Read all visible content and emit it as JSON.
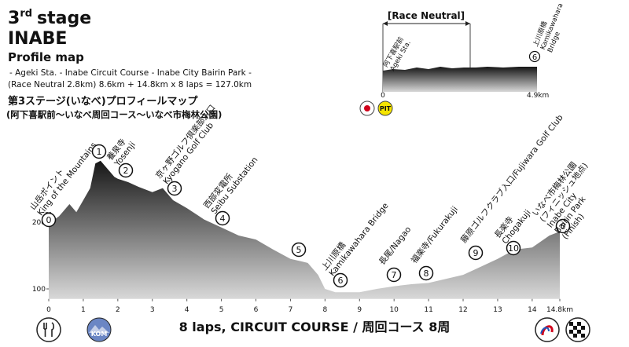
{
  "header": {
    "stage_number": "3",
    "stage_suffix": "rd",
    "stage_word": "stage",
    "name": "INABE",
    "subtitle": "Profile map",
    "route": "- Ageki Sta. - Inabe Circuit Course - Inabe City Bairin Park -",
    "distance": "(Race Neutral 2.8km) 8.6km + 14.8km x 8 laps = 127.0km",
    "title_ja": "第3ステージ(いなべ)プロフィールマップ",
    "route_ja": "(阿下喜駅前〜いなべ周回コース〜いなべ市梅林公園)"
  },
  "neutral": {
    "title": "[Race Neutral]",
    "start_ja": "阿下喜駅前",
    "start_en": "Ageki Sta.",
    "end_number": "6",
    "end_ja": "上川原橋",
    "end_en": [
      "Kamikawahara",
      "Bridge"
    ],
    "start_tick": "0",
    "end_tick": "4.9km",
    "pit": "PIT"
  },
  "landmarks": [
    {
      "number": "0",
      "lines": [
        "山岳ポイント",
        "King of the Mountains"
      ]
    },
    {
      "number": "1",
      "lines": []
    },
    {
      "number": "2",
      "lines": [
        "養泉寺",
        "Yosenji"
      ]
    },
    {
      "number": "3",
      "lines": [
        "京ヶ野ゴルフ倶楽部入口",
        "Kyogano Golf Club"
      ]
    },
    {
      "number": "4",
      "lines": [
        "西部変電所",
        "Seibu Substation"
      ]
    },
    {
      "number": "5",
      "lines": []
    },
    {
      "number": "6",
      "lines": [
        "上川原橋",
        "Kamikawahara Bridge"
      ]
    },
    {
      "number": "7",
      "lines": [
        "長尾/Nagao"
      ]
    },
    {
      "number": "8",
      "lines": [
        "福楽寺/Fukurakuji"
      ]
    },
    {
      "number": "9",
      "lines": [
        "藤原ゴルフクラブ入口/Fujiwara Golf Club"
      ]
    },
    {
      "number": "10",
      "lines": [
        "長楽寺",
        "Chogakuji"
      ]
    },
    {
      "number": "0",
      "lines": [
        "いなべ市梅林公園",
        "(フィニッシュ地点)",
        "Inabe City",
        "Bairin Park",
        "(Finish)"
      ]
    }
  ],
  "footer": {
    "course": "8 laps, CIRCUIT COURSE / 周回コース 8周",
    "kom": "KOM"
  },
  "chart_data": {
    "type": "area",
    "x": [
      0,
      0.3,
      0.6,
      0.8,
      1.0,
      1.2,
      1.35,
      1.5,
      1.7,
      1.9,
      2.0,
      2.3,
      2.6,
      3.0,
      3.3,
      3.6,
      4.0,
      4.5,
      5.0,
      5.5,
      6.0,
      6.5,
      7.0,
      7.5,
      7.8,
      8.0,
      8.3,
      8.6,
      9.0,
      9.5,
      10.0,
      10.5,
      11.0,
      11.5,
      12.0,
      12.5,
      13.0,
      13.5,
      14.0,
      14.5,
      14.8
    ],
    "values": [
      198,
      209,
      227,
      215,
      233,
      251,
      288,
      292,
      280,
      268,
      265,
      260,
      253,
      245,
      251,
      233,
      221,
      204,
      192,
      180,
      174,
      159,
      145,
      139,
      121,
      100,
      95,
      95,
      95,
      100,
      104,
      107,
      109,
      115,
      121,
      133,
      145,
      159,
      162,
      180,
      186
    ],
    "color": "#161616",
    "xlim": [
      0,
      14.8
    ],
    "ylim": [
      85,
      300
    ],
    "xticks": [
      0,
      1,
      2,
      3,
      4,
      5,
      6,
      7,
      8,
      9,
      10,
      11,
      12,
      13,
      14,
      {
        "value": 14.8,
        "label": "14.8km"
      }
    ],
    "yticks": [
      100,
      200
    ],
    "y_unit": "m"
  }
}
